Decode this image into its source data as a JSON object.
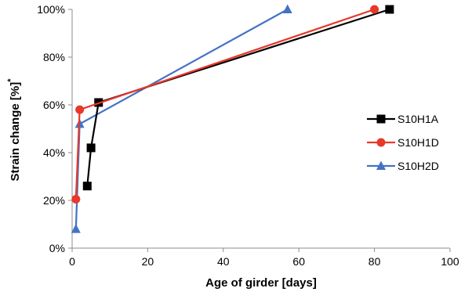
{
  "chart_data": {
    "type": "line",
    "xlabel": "Age of girder [days]",
    "ylabel": "Strain change [%]",
    "ylabel_superscript": "*",
    "xlim": [
      0,
      100
    ],
    "ylim": [
      0,
      100
    ],
    "x_ticks": [
      0,
      20,
      40,
      60,
      80,
      100
    ],
    "y_ticks": [
      0,
      20,
      40,
      60,
      80,
      100
    ],
    "x_tick_labels": [
      "0",
      "20",
      "40",
      "60",
      "80",
      "100"
    ],
    "y_tick_labels": [
      "0%",
      "20%",
      "40%",
      "60%",
      "80%",
      "100%"
    ],
    "legend_placement": "right",
    "grid": false,
    "series": [
      {
        "name": "S10H1A",
        "color": "#000000",
        "marker": "square",
        "points": [
          {
            "x": 4,
            "y": 26
          },
          {
            "x": 5,
            "y": 42
          },
          {
            "x": 7,
            "y": 61
          },
          {
            "x": 84,
            "y": 100
          }
        ]
      },
      {
        "name": "S10H1D",
        "color": "#e8382a",
        "marker": "circle",
        "points": [
          {
            "x": 1,
            "y": 20.5
          },
          {
            "x": 2,
            "y": 58
          },
          {
            "x": 80,
            "y": 100
          }
        ]
      },
      {
        "name": "S10H2D",
        "color": "#4472c4",
        "marker": "triangle",
        "points": [
          {
            "x": 1,
            "y": 8
          },
          {
            "x": 2,
            "y": 52
          },
          {
            "x": 57,
            "y": 100
          }
        ]
      }
    ]
  }
}
